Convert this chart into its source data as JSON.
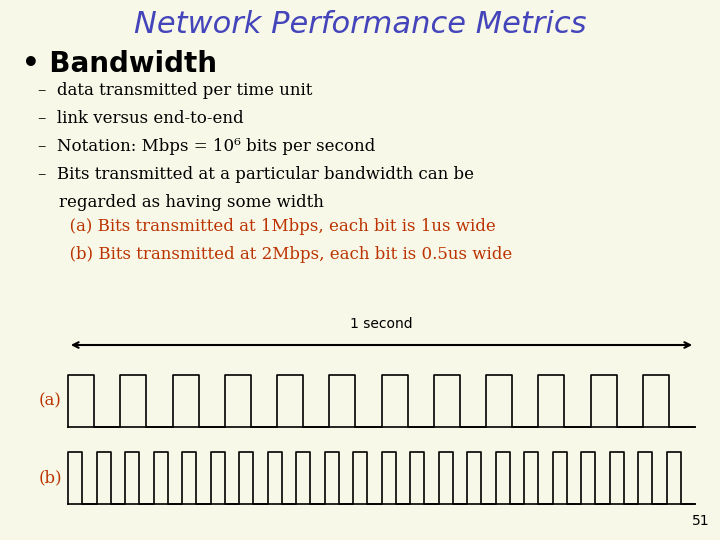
{
  "title": "Network Performance Metrics",
  "title_color": "#4444bb",
  "title_fontsize": 22,
  "background_color": "#f8f8e8",
  "bullet_text": "Bandwidth",
  "bullet_color": "#000000",
  "bullet_fontsize": 20,
  "sub_bullets": [
    "data transmitted per time unit",
    "link versus end-to-end",
    "Notation: Mbps = 10⁶ bits per second",
    "Bits transmitted at a particular bandwidth can be\n   regarded as having some width"
  ],
  "sub_bullet_color": "#000000",
  "sub_bullet_fontsize": 12,
  "red_lines": [
    "   (a) Bits transmitted at 1Mbps, each bit is 1us wide",
    "   (b) Bits transmitted at 2Mbps, each bit is 0.5us wide"
  ],
  "red_color": "#bb3300",
  "red_fontsize": 12,
  "label_a": "(a)",
  "label_b": "(b)",
  "label_color": "#bb3300",
  "label_fontsize": 12,
  "arrow_label": "1 second",
  "arrow_color": "#000000",
  "arrow_fontsize": 10,
  "page_number": "51",
  "page_fontsize": 10,
  "waveform_color": "#000000",
  "waveform_linewidth": 1.2,
  "num_bits_a": 12,
  "num_bits_b": 22
}
